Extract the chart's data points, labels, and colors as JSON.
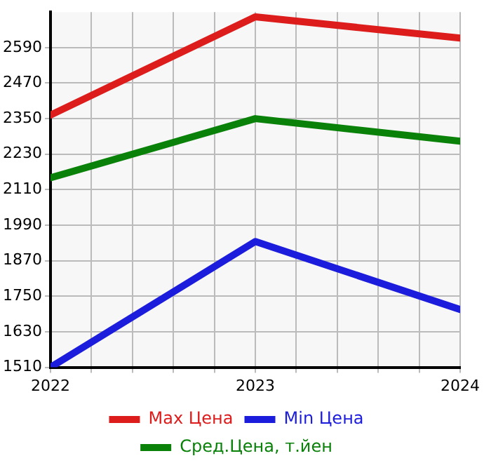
{
  "chart_data": {
    "type": "line",
    "x": [
      2022,
      2023,
      2024
    ],
    "series": [
      {
        "name": "Max Цена",
        "color": "#dd1c1c",
        "values": [
          2362,
          2694,
          2622
        ]
      },
      {
        "name": "Min Цена",
        "color": "#1c1cdd",
        "values": [
          1510,
          1935,
          1705
        ]
      },
      {
        "name": "Сред.Цена, т.йен",
        "color": "#0a820a",
        "values": [
          2150,
          2350,
          2274
        ]
      }
    ],
    "xlim": [
      2022,
      2024
    ],
    "xticks": [
      2022,
      {
        "value": 2022.2,
        "label": null
      },
      {
        "value": 2022.4,
        "label": null
      },
      {
        "value": 2022.6,
        "label": null
      },
      {
        "value": 2022.8,
        "label": null
      },
      2023,
      {
        "value": 2023.2,
        "label": null
      },
      {
        "value": 2023.4,
        "label": null
      },
      {
        "value": 2023.6,
        "label": null
      },
      {
        "value": 2023.8,
        "label": null
      },
      2024
    ],
    "ylim": [
      1510,
      2710
    ],
    "yticks": [
      1510,
      1630,
      1750,
      1870,
      1990,
      2110,
      2230,
      2350,
      2470,
      2590
    ],
    "grid": true,
    "legend": "bottom",
    "marker": "none",
    "line_style": "solid"
  }
}
